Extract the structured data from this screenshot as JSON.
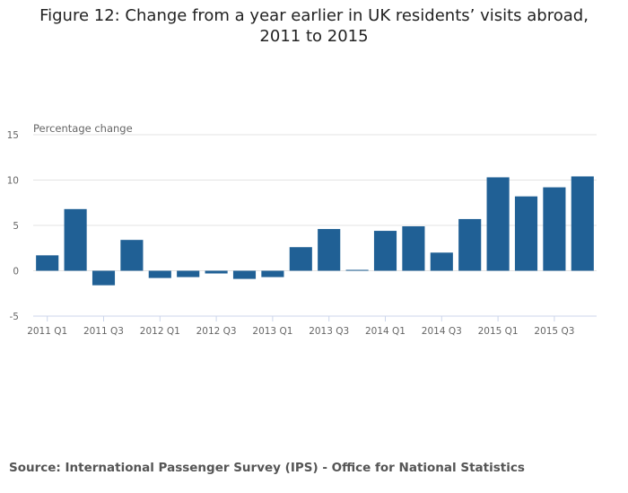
{
  "chart_data": {
    "type": "bar",
    "title": "Figure 12: Change from a year earlier in UK residents’ visits abroad, 2011 to 2015",
    "ylabel": "Percentage change",
    "xlabel": "",
    "ylim": [
      -5,
      15
    ],
    "yticks": [
      "15",
      "10",
      "5",
      "0",
      "-5"
    ],
    "ytick_values": [
      15,
      10,
      5,
      0,
      -5
    ],
    "grid": true,
    "color": "#206095",
    "categories": [
      "2011 Q1",
      "2011 Q2",
      "2011 Q3",
      "2011 Q4",
      "2012 Q1",
      "2012 Q2",
      "2012 Q3",
      "2012 Q4",
      "2013 Q1",
      "2013 Q2",
      "2013 Q3",
      "2013 Q4",
      "2014 Q1",
      "2014 Q2",
      "2014 Q3",
      "2014 Q4",
      "2015 Q1",
      "2015 Q2",
      "2015 Q3",
      "2015 Q4"
    ],
    "xtick_labels": [
      "2011 Q1",
      "",
      "2011 Q3",
      "",
      "2012 Q1",
      "",
      "2012 Q3",
      "",
      "2013 Q1",
      "",
      "2013 Q3",
      "",
      "2014 Q1",
      "",
      "2014 Q3",
      "",
      "2015 Q1",
      "",
      "2015 Q3",
      ""
    ],
    "values": [
      1.7,
      6.8,
      -1.6,
      3.4,
      -0.8,
      -0.7,
      -0.3,
      -0.9,
      -0.7,
      2.6,
      4.6,
      0.1,
      4.4,
      4.9,
      2.0,
      5.7,
      10.3,
      8.2,
      9.2,
      10.4
    ]
  },
  "source": "Source: International Passenger Survey (IPS) - Office for National Statistics"
}
